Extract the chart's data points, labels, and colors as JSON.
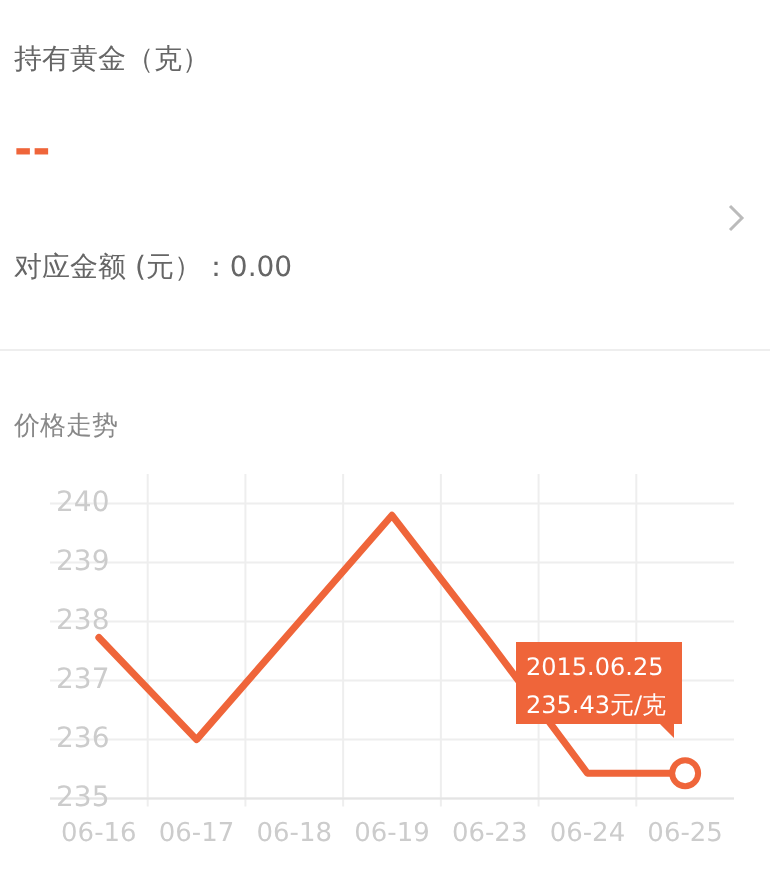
{
  "chart_data": [
    {
      "type": "other",
      "annotations": [
        "持有黄金（克）",
        "--",
        "对应金额 (元）：0.00"
      ]
    },
    {
      "type": "line",
      "title": "价格走势",
      "categories": [
        "06-16",
        "06-17",
        "06-18",
        "06-19",
        "06-23",
        "06-24",
        "06-25"
      ],
      "series": [
        {
          "color": "#ef653a",
          "values": [
            237.73,
            236.0,
            237.9,
            239.8,
            237.65,
            235.43,
            235.43
          ]
        }
      ],
      "ylim": [
        235,
        240.5
      ],
      "yticks": [
        235,
        236,
        237,
        238,
        239,
        240
      ],
      "grid": true,
      "marker": "none",
      "line_style": "solid",
      "annotations": [
        {
          "text": "2015.06.25\n235.43元/克",
          "x": "06-25",
          "y": 235.43
        }
      ]
    }
  ]
}
